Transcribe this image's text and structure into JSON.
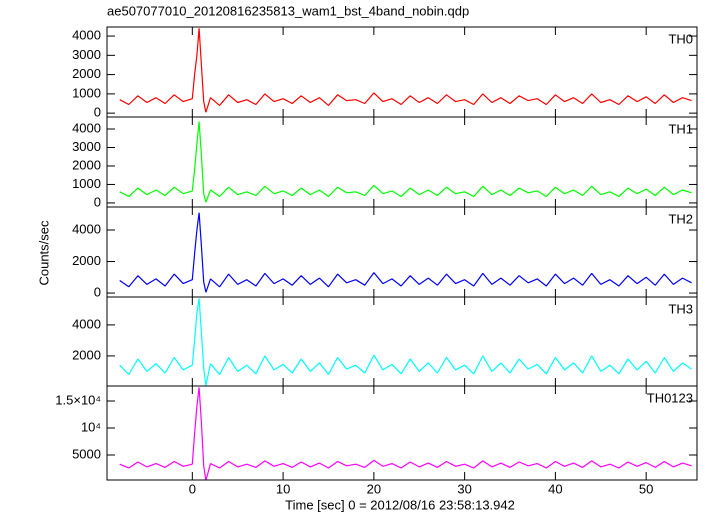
{
  "chart_data": {
    "type": "line",
    "title": "ae507077010_20120816235813_wam1_bst_4band_nobin.qdp",
    "xlabel": "Time [sec] 0 = 2012/08/16 23:58:13.942",
    "ylabel": "Counts/sec",
    "xlim": [
      -9.4,
      55.6
    ],
    "xticks": [
      0,
      10,
      20,
      30,
      40,
      50
    ],
    "x": [
      -8,
      -7,
      -6,
      -5,
      -4,
      -3,
      -2,
      -1,
      0,
      0.25,
      0.5,
      0.75,
      1,
      1.25,
      1.5,
      2,
      3,
      4,
      5,
      6,
      7,
      8,
      9,
      10,
      11,
      12,
      13,
      14,
      15,
      16,
      17,
      18,
      19,
      20,
      21,
      22,
      23,
      24,
      25,
      26,
      27,
      28,
      29,
      30,
      31,
      32,
      33,
      34,
      35,
      36,
      37,
      38,
      39,
      40,
      41,
      42,
      43,
      44,
      45,
      46,
      47,
      48,
      49,
      50,
      51,
      52,
      53,
      54,
      55
    ],
    "panels": [
      {
        "name": "TH0",
        "color": "#ff0000",
        "ylim": [
          -200,
          4470
        ],
        "yticks": [
          0,
          1000,
          2000,
          3000,
          4000
        ],
        "values": [
          700,
          450,
          900,
          550,
          800,
          500,
          950,
          600,
          750,
          2000,
          3000,
          4400,
          2500,
          600,
          50,
          800,
          400,
          950,
          550,
          700,
          450,
          1000,
          600,
          750,
          500,
          900,
          550,
          800,
          400,
          950,
          650,
          700,
          500,
          1050,
          600,
          750,
          450,
          900,
          550,
          800,
          500,
          950,
          600,
          700,
          450,
          1000,
          550,
          800,
          500,
          900,
          650,
          750,
          450,
          950,
          600,
          800,
          500,
          1000,
          550,
          700,
          450,
          900,
          600,
          850,
          500,
          950,
          550,
          800,
          650
        ]
      },
      {
        "name": "TH1",
        "color": "#00ff00",
        "ylim": [
          -220,
          4650
        ],
        "yticks": [
          0,
          1000,
          2000,
          3000,
          4000
        ],
        "values": [
          600,
          350,
          800,
          450,
          700,
          400,
          850,
          500,
          650,
          1800,
          3200,
          4400,
          2600,
          500,
          40,
          700,
          350,
          850,
          450,
          600,
          400,
          900,
          500,
          650,
          400,
          800,
          450,
          700,
          350,
          850,
          550,
          600,
          400,
          950,
          500,
          650,
          350,
          800,
          450,
          700,
          400,
          850,
          500,
          600,
          350,
          900,
          450,
          700,
          400,
          800,
          550,
          650,
          350,
          850,
          500,
          700,
          400,
          900,
          450,
          600,
          350,
          800,
          500,
          750,
          400,
          850,
          450,
          700,
          550
        ]
      },
      {
        "name": "TH2",
        "color": "#0000ff",
        "ylim": [
          -250,
          5460
        ],
        "yticks": [
          0,
          2000,
          4000
        ],
        "values": [
          800,
          400,
          1100,
          550,
          900,
          450,
          1200,
          600,
          850,
          2500,
          4000,
          5100,
          3000,
          700,
          50,
          900,
          400,
          1200,
          550,
          850,
          450,
          1250,
          600,
          900,
          500,
          1100,
          550,
          950,
          400,
          1200,
          650,
          850,
          500,
          1300,
          600,
          900,
          450,
          1100,
          550,
          950,
          500,
          1200,
          600,
          850,
          450,
          1250,
          550,
          950,
          500,
          1100,
          650,
          900,
          450,
          1200,
          600,
          950,
          500,
          1250,
          550,
          850,
          450,
          1100,
          600,
          1000,
          500,
          1200,
          550,
          950,
          650
        ]
      },
      {
        "name": "TH3",
        "color": "#00ffff",
        "ylim": [
          60,
          5800
        ],
        "yticks": [
          2000,
          4000
        ],
        "values": [
          1400,
          800,
          1800,
          1000,
          1500,
          900,
          1900,
          1100,
          1400,
          3000,
          4800,
          5700,
          3500,
          1200,
          100,
          1500,
          800,
          1900,
          1000,
          1400,
          850,
          2000,
          1100,
          1450,
          900,
          1800,
          1000,
          1550,
          800,
          1900,
          1150,
          1400,
          900,
          2050,
          1100,
          1450,
          850,
          1800,
          1000,
          1550,
          900,
          1900,
          1100,
          1400,
          850,
          2000,
          1000,
          1550,
          900,
          1800,
          1150,
          1450,
          850,
          1900,
          1100,
          1550,
          900,
          2000,
          1000,
          1400,
          850,
          1800,
          1100,
          1650,
          900,
          1900,
          1000,
          1550,
          1150
        ]
      },
      {
        "name": "TH0123",
        "color": "#ff00ff",
        "ylim": [
          370,
          17780
        ],
        "yticks": [
          5000,
          {
            "value": 10000,
            "label": "10⁴"
          },
          {
            "value": 15000,
            "label": "1.5×10⁴"
          }
        ],
        "values": [
          3300,
          2600,
          3700,
          2800,
          3400,
          2700,
          3800,
          2900,
          3300,
          9000,
          14000,
          17500,
          11000,
          3000,
          300,
          3400,
          2600,
          3800,
          2800,
          3300,
          2700,
          3900,
          2900,
          3400,
          2700,
          3700,
          2800,
          3500,
          2600,
          3800,
          3000,
          3300,
          2700,
          4000,
          2900,
          3400,
          2600,
          3700,
          2800,
          3500,
          2700,
          3800,
          2900,
          3300,
          2600,
          3900,
          2800,
          3500,
          2700,
          3700,
          3000,
          3400,
          2600,
          3800,
          2900,
          3500,
          2700,
          3900,
          2800,
          3300,
          2600,
          3700,
          2900,
          3600,
          2700,
          3800,
          2800,
          3500,
          3000
        ]
      }
    ]
  }
}
